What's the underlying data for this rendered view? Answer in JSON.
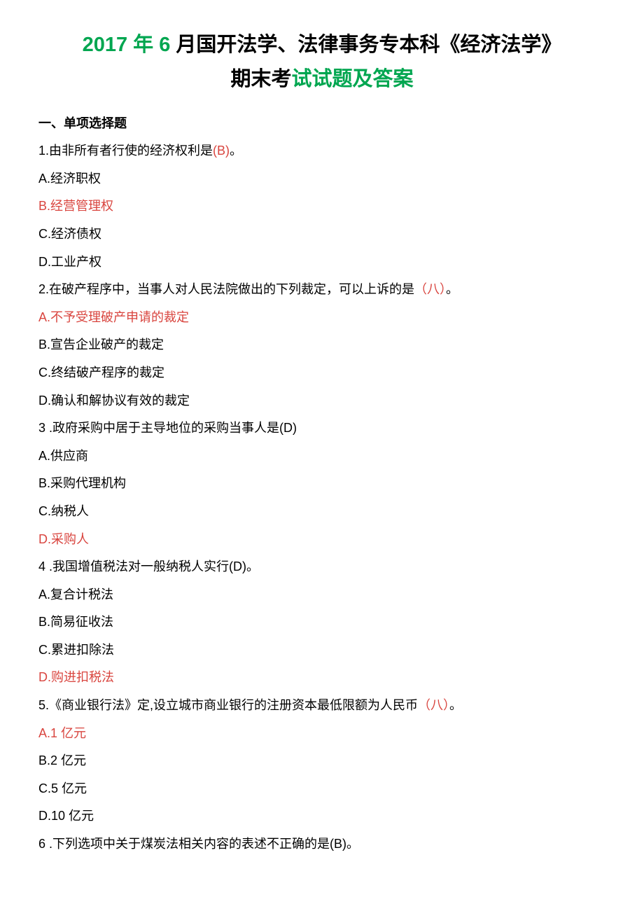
{
  "title": {
    "part1": "2017 年 6 ",
    "part2": "月国开法学、法律事务专本科《经济法学》",
    "part3": "期末考",
    "part4": "试试题及答案",
    "colors": {
      "green": "#00a650",
      "black": "#000000",
      "red": "#d9453f"
    },
    "fontsize": 29
  },
  "section1": {
    "heading": "一、单项选择题",
    "questions": [
      {
        "stem": {
          "pre": "1.由非所有者行使的经济权利是",
          "ans": "(B)",
          "post": "。"
        },
        "options": [
          {
            "text": "A.经济职权",
            "highlight": false
          },
          {
            "text": "B.经营管理权",
            "highlight": true
          },
          {
            "text": "C.经济债权",
            "highlight": false
          },
          {
            "text": "D.工业产权",
            "highlight": false
          }
        ]
      },
      {
        "stem": {
          "pre": "2.在破产程序中，当事人对人民法院做出的下列裁定，可以上诉的是",
          "ans": "（八）",
          "post": "。"
        },
        "options": [
          {
            "text": "A.不予受理破产申请的裁定",
            "highlight": true
          },
          {
            "text": "B.宣告企业破产的裁定",
            "highlight": false
          },
          {
            "text": "C.终结破产程序的裁定",
            "highlight": false
          },
          {
            "text": "D.确认和解协议有效的裁定",
            "highlight": false
          }
        ]
      },
      {
        "stem": {
          "pre": "3 .政府采购中居于主导地位的采购当事人是(D)",
          "ans": "",
          "post": ""
        },
        "options": [
          {
            "text": "A.供应商",
            "highlight": false
          },
          {
            "text": "B.采购代理机构",
            "highlight": false
          },
          {
            "text": "C.纳税人",
            "highlight": false
          },
          {
            "text": "D.采购人",
            "highlight": true
          }
        ]
      },
      {
        "stem": {
          "pre": "4 .我国增值税法对一般纳税人实行(D)。",
          "ans": "",
          "post": ""
        },
        "options": [
          {
            "text": "A.复合计税法",
            "highlight": false
          },
          {
            "text": "B.简易征收法",
            "highlight": false
          },
          {
            "text": "C.累进扣除法",
            "highlight": false
          },
          {
            "text": "D.购进扣税法",
            "highlight": true
          }
        ]
      },
      {
        "stem": {
          "pre": "5.《商业银行法》定,设立城市商业银行的注册资本最低限额为人民币",
          "ans": "（八）",
          "post": "。"
        },
        "options": [
          {
            "text": "A.1 亿元",
            "highlight": true
          },
          {
            "text": "B.2 亿元",
            "highlight": false
          },
          {
            "text": "C.5 亿元",
            "highlight": false
          },
          {
            "text": "D.10 亿元",
            "highlight": false
          }
        ]
      },
      {
        "stem": {
          "pre": "6 .下列选项中关于煤炭法相关内容的表述不正确的是(B)。",
          "ans": "",
          "post": ""
        },
        "options": []
      }
    ]
  },
  "body_fontsize": 18,
  "line_height": 2.2
}
